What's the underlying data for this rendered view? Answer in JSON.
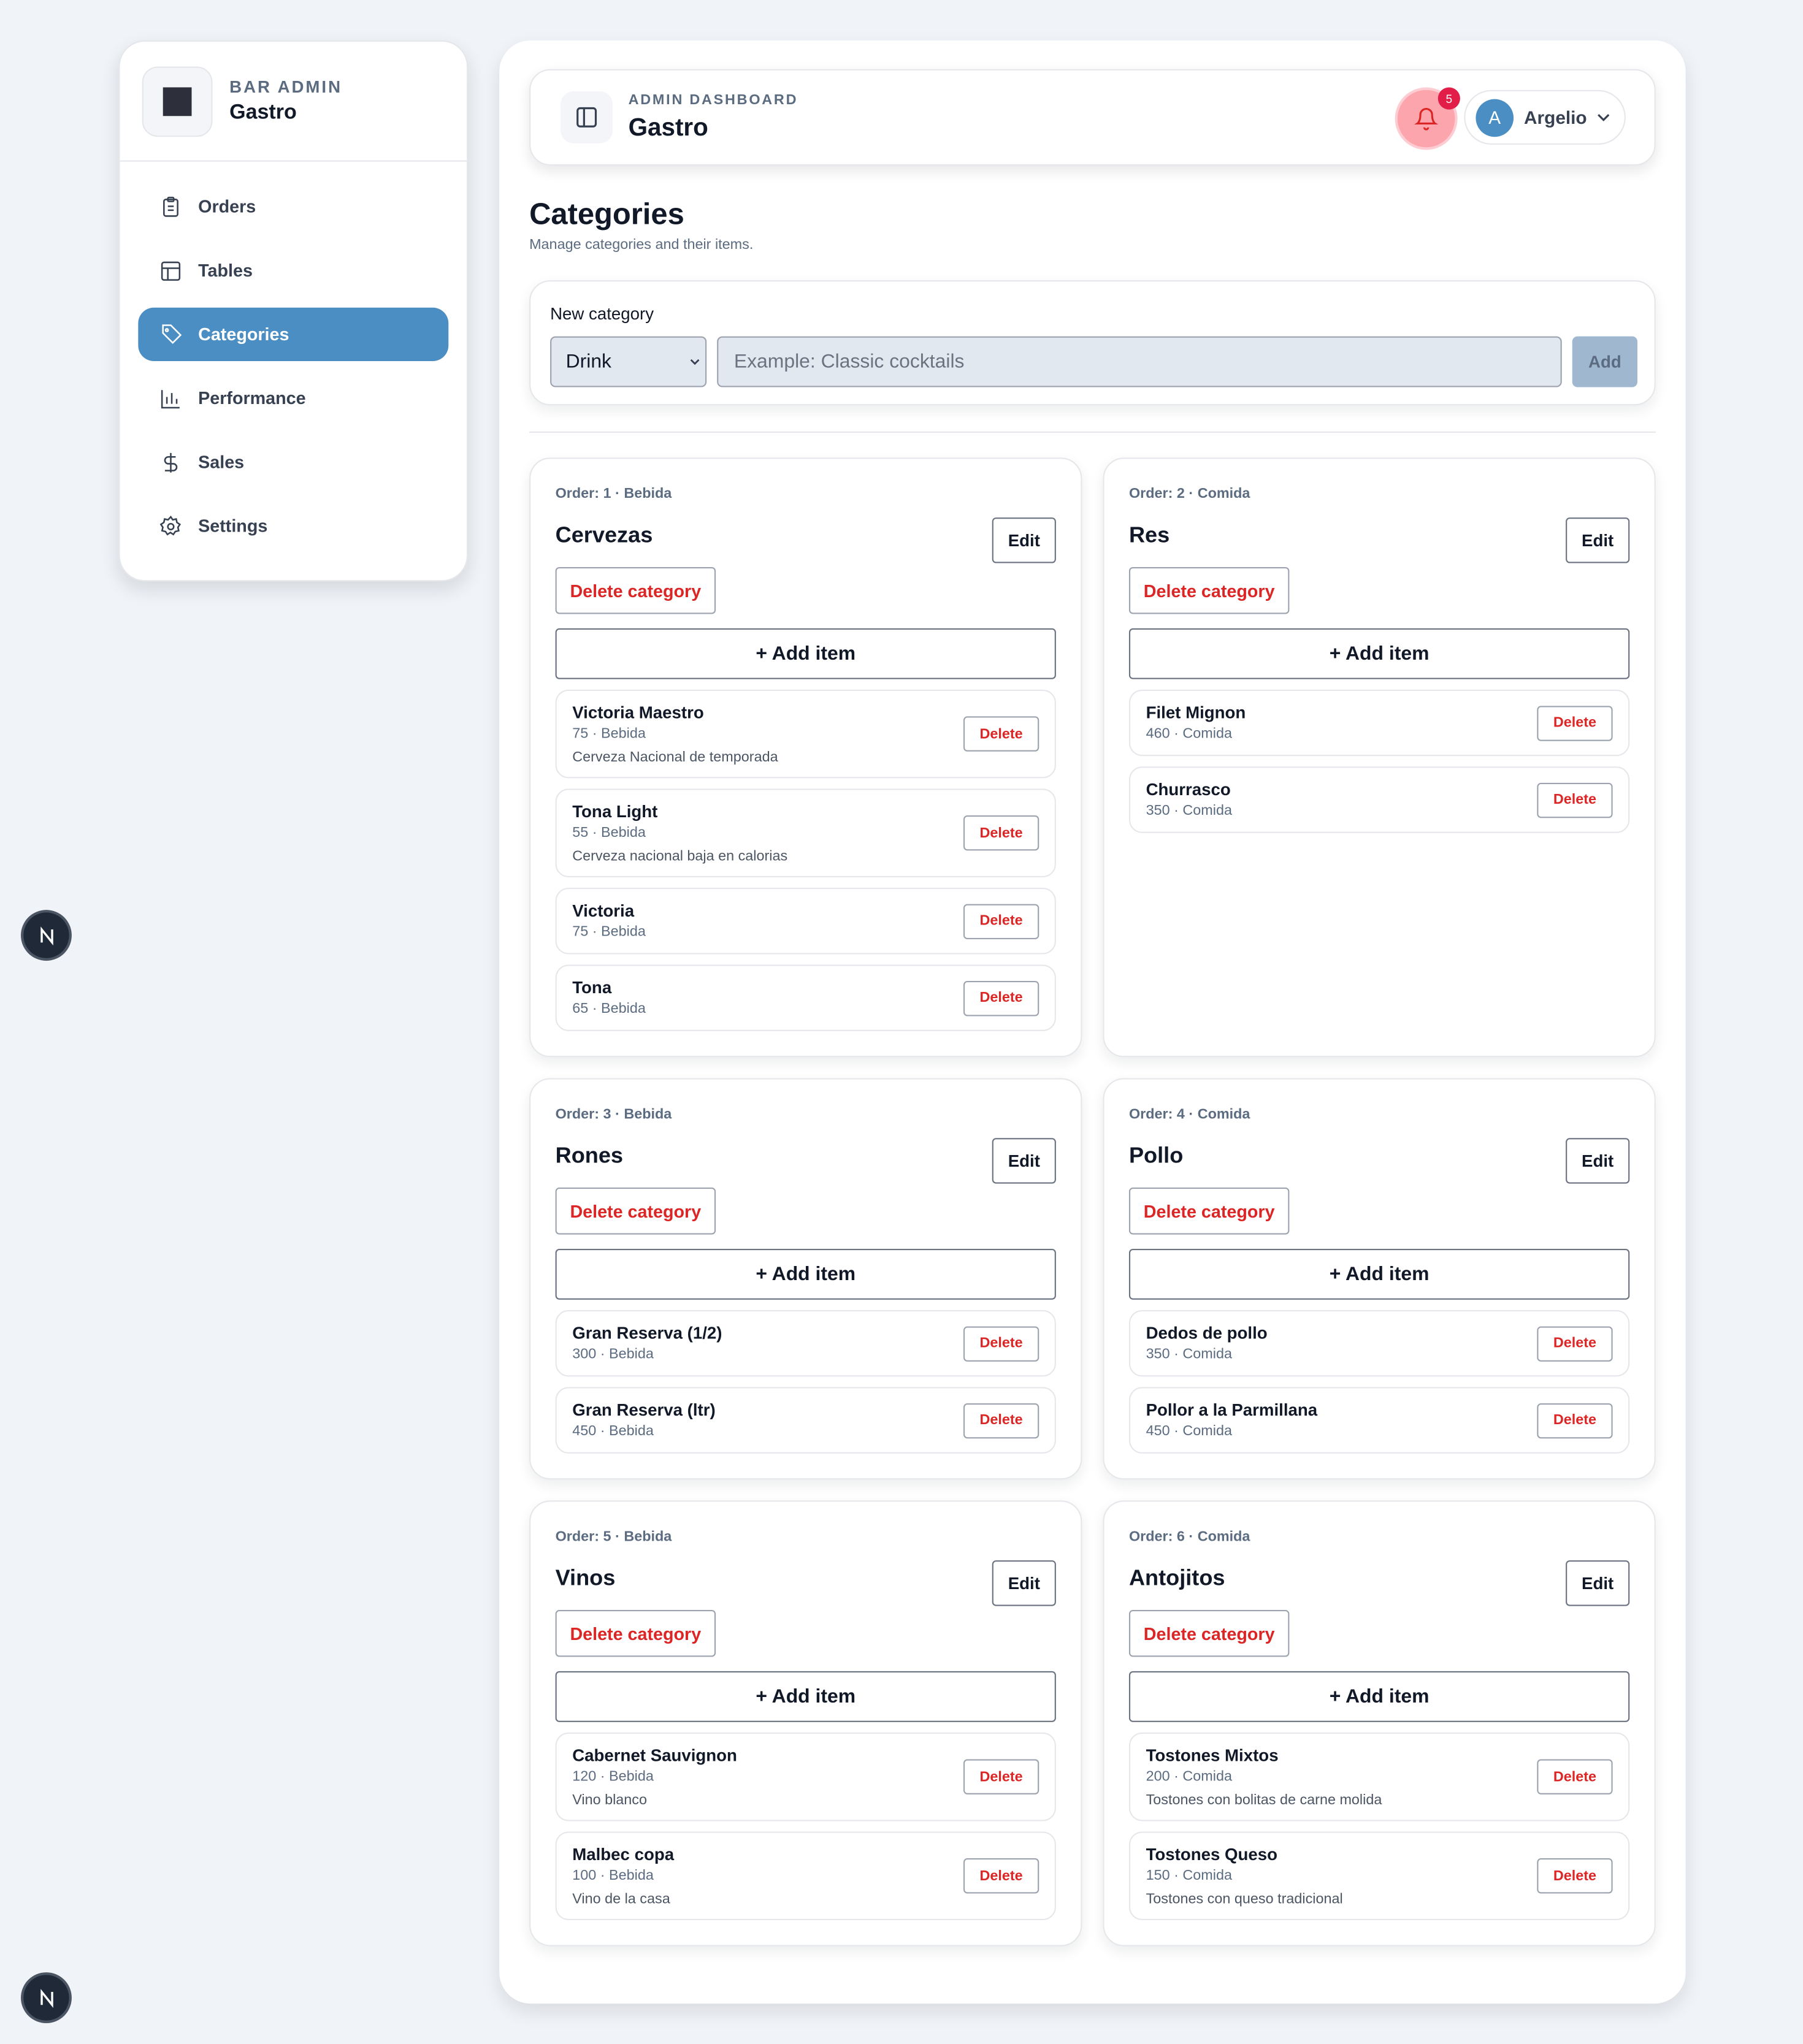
{
  "sidebar": {
    "brand_kicker": "BAR ADMIN",
    "brand_name": "Gastro",
    "nav": [
      "Orders",
      "Tables",
      "Categories",
      "Performance",
      "Sales",
      "Settings"
    ],
    "active": 2
  },
  "header": {
    "kicker": "ADMIN DASHBOARD",
    "title": "Gastro",
    "notifications": "5",
    "user_initial": "A",
    "user_name": "Argelio"
  },
  "page": {
    "title": "Categories",
    "subtitle": "Manage categories and their items."
  },
  "form": {
    "label": "New category",
    "select": "Drink",
    "placeholder": "Example: Classic cocktails",
    "button": "Add"
  },
  "buttons": {
    "edit": "Edit",
    "delete_category": "Delete category",
    "add_item": "+ Add item",
    "delete": "Delete"
  },
  "categories": [
    {
      "meta": "Order: 1 · Bebida",
      "name": "Cervezas",
      "items": [
        {
          "name": "Victoria Maestro",
          "meta": "75 · Bebida",
          "description": "Cerveza Nacional de temporada"
        },
        {
          "name": "Tona Light",
          "meta": "55 · Bebida",
          "description": "Cerveza nacional baja en calorias"
        },
        {
          "name": "Victoria",
          "meta": "75 · Bebida"
        },
        {
          "name": "Tona",
          "meta": "65 · Bebida"
        }
      ]
    },
    {
      "meta": "Order: 2 · Comida",
      "name": "Res",
      "items": [
        {
          "name": "Filet Mignon",
          "meta": "460 · Comida"
        },
        {
          "name": "Churrasco",
          "meta": "350 · Comida"
        }
      ]
    },
    {
      "meta": "Order: 3 · Bebida",
      "name": "Rones",
      "items": [
        {
          "name": "Gran Reserva (1/2)",
          "meta": "300 · Bebida"
        },
        {
          "name": "Gran Reserva (ltr)",
          "meta": "450 · Bebida"
        }
      ]
    },
    {
      "meta": "Order: 4 · Comida",
      "name": "Pollo",
      "items": [
        {
          "name": "Dedos de pollo",
          "meta": "350 · Comida"
        },
        {
          "name": "Pollor a la Parmillana",
          "meta": "450 · Comida"
        }
      ]
    },
    {
      "meta": "Order: 5 · Bebida",
      "name": "Vinos",
      "items": [
        {
          "name": "Cabernet Sauvignon",
          "meta": "120 · Bebida",
          "description": "Vino blanco"
        },
        {
          "name": "Malbec copa",
          "meta": "100 · Bebida",
          "description": "Vino de la casa"
        }
      ]
    },
    {
      "meta": "Order: 6 · Comida",
      "name": "Antojitos",
      "items": [
        {
          "name": "Tostones Mixtos",
          "meta": "200 · Comida",
          "description": "Tostones con bolitas de carne molida"
        },
        {
          "name": "Tostones Queso",
          "meta": "150 · Comida",
          "description": "Tostones con queso tradicional"
        }
      ]
    }
  ]
}
